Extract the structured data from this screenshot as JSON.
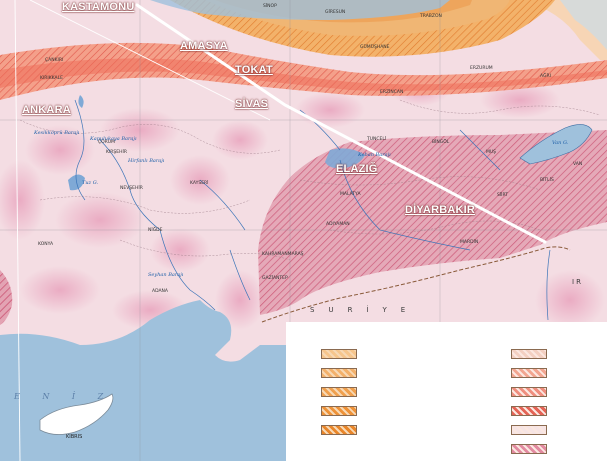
{
  "route_labels": {
    "kastamonu": "KASTAMONU",
    "amasya": "AMASYA",
    "tokat": "TOKAT",
    "sivas": "SİVAS",
    "elazig": "ELAZIĞ",
    "diyarbakir": "DİYARBAKIR",
    "ankara": "ANKARA"
  },
  "places": {
    "kibris": "KIBRIS",
    "suriye": "SURİYE",
    "iran_partial": "IR",
    "sea_partial": "E N İ Z"
  },
  "cities": {
    "corum": "ÇORUM",
    "cankiri": "ÇANKIRI",
    "kirikkale": "KIRIKKALE",
    "kirsehir": "KIRŞEHİR",
    "nevsehir": "NEVŞEHİR",
    "kayseri": "KAYSERİ",
    "nigde": "NİĞDE",
    "konya": "KONYA",
    "adana": "ADANA",
    "malatya": "MALATYA",
    "adiyaman": "ADIYAMAN",
    "kahramanmaras": "KAHRAMANMARAŞ",
    "gaziantep": "GAZİANTEP",
    "mardin": "MARDİN",
    "erzincan": "ERZİNCAN",
    "erzurum": "ERZURUM",
    "bingol": "BİNGÖL",
    "mus": "MUŞ",
    "tunceli": "TUNCELİ",
    "sinop": "SİNOP",
    "giresun": "GİRESUN",
    "trabzon": "TRABZON",
    "gumushane": "GÜMÜŞHANE",
    "siirt": "SİİRT",
    "bitlis": "BİTLİS",
    "van": "VAN",
    "agri": "AĞRI"
  },
  "lakes": {
    "tuz": "Tuz G.",
    "van_golu": "Van G.",
    "kesikkopru": "Kesikköprü Barajı",
    "kapulukaya": "Kapulukaya Barajı",
    "keban": "Keban Barajı",
    "seyhan": "Seyhan Barajı",
    "hirfanli": "Hirfanlı Barajı"
  },
  "legend": {
    "left_swatches": [
      {
        "fill": "#f6c58c"
      },
      {
        "fill": "#f3b06a"
      },
      {
        "fill": "#f0a04e"
      },
      {
        "fill": "#ee9238"
      },
      {
        "fill": "#e9862a"
      }
    ],
    "right_swatches": [
      {
        "fill": "#f3cfc1"
      },
      {
        "fill": "#f2a590"
      },
      {
        "fill": "#ef8e7e"
      },
      {
        "fill": "#e46456"
      },
      {
        "fill": "#f6e4e4"
      },
      {
        "fill": "#e28aa0"
      }
    ]
  },
  "colors": {
    "route_line": "#ffffff",
    "sea": "#9fc1dc",
    "hazard_zone": "#d66a82",
    "orange_band": "#f2a55a",
    "red_band": "#ef8a74"
  }
}
